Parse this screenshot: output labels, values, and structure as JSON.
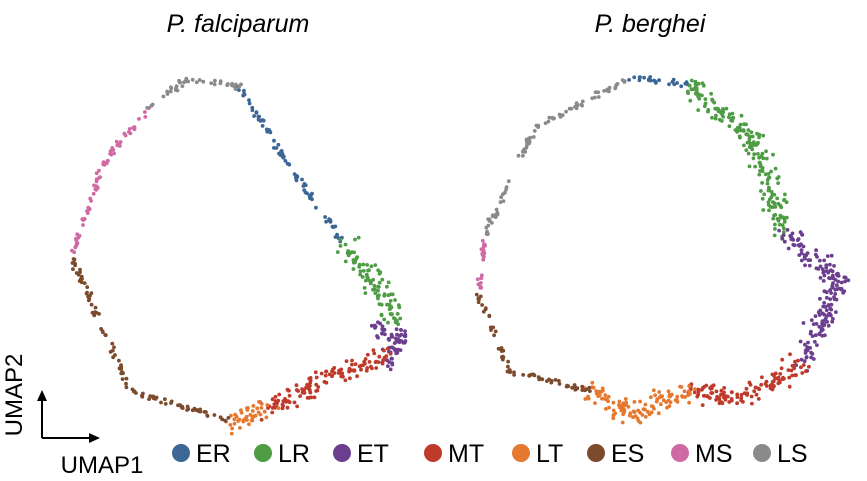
{
  "chart_data": [
    {
      "type": "scatter",
      "title": "P. falciparum",
      "xlabel": "UMAP1",
      "ylabel": "UMAP2",
      "series": [
        {
          "name": "ER",
          "color": "#3B6696",
          "trajectory": [
            [
              0.44,
              0.95
            ],
            [
              0.55,
              0.74
            ],
            [
              0.72,
              0.45
            ]
          ]
        },
        {
          "name": "LR",
          "color": "#4E9C44",
          "trajectory": [
            [
              0.72,
              0.45
            ],
            [
              0.82,
              0.3
            ],
            [
              0.86,
              0.22
            ]
          ]
        },
        {
          "name": "ET",
          "color": "#6B3E8F",
          "trajectory": [
            [
              0.8,
              0.2
            ],
            [
              0.87,
              0.16
            ],
            [
              0.82,
              0.08
            ]
          ]
        },
        {
          "name": "MT",
          "color": "#C03A2B",
          "trajectory": [
            [
              0.82,
              0.1
            ],
            [
              0.7,
              0.05
            ],
            [
              0.52,
              -0.05
            ]
          ]
        },
        {
          "name": "LT",
          "color": "#E6782F",
          "trajectory": [
            [
              0.52,
              -0.05
            ],
            [
              0.42,
              -0.1
            ]
          ]
        },
        {
          "name": "ES",
          "color": "#7C4A2C",
          "trajectory": [
            [
              0.42,
              -0.1
            ],
            [
              0.15,
              0.0
            ],
            [
              0.0,
              0.42
            ]
          ]
        },
        {
          "name": "MS",
          "color": "#D06AA4",
          "trajectory": [
            [
              0.0,
              0.42
            ],
            [
              0.08,
              0.7
            ],
            [
              0.2,
              0.88
            ]
          ]
        },
        {
          "name": "LS",
          "color": "#8A8A8A",
          "trajectory": [
            [
              0.2,
              0.88
            ],
            [
              0.3,
              0.97
            ],
            [
              0.44,
              0.95
            ]
          ]
        }
      ],
      "grid": false,
      "axes_visible": false
    },
    {
      "type": "scatter",
      "title": "P. berghei",
      "xlabel": "UMAP1",
      "ylabel": "UMAP2",
      "series": [
        {
          "name": "ER",
          "color": "#3B6696",
          "trajectory": [
            [
              0.4,
              0.97
            ],
            [
              0.55,
              0.95
            ]
          ]
        },
        {
          "name": "LR",
          "color": "#4E9C44",
          "trajectory": [
            [
              0.55,
              0.95
            ],
            [
              0.72,
              0.78
            ],
            [
              0.8,
              0.5
            ]
          ]
        },
        {
          "name": "ET",
          "color": "#6B3E8F",
          "trajectory": [
            [
              0.8,
              0.5
            ],
            [
              0.95,
              0.35
            ],
            [
              0.85,
              0.1
            ]
          ]
        },
        {
          "name": "MT",
          "color": "#C03A2B",
          "trajectory": [
            [
              0.85,
              0.1
            ],
            [
              0.7,
              0.0
            ],
            [
              0.55,
              0.02
            ]
          ]
        },
        {
          "name": "LT",
          "color": "#E6782F",
          "trajectory": [
            [
              0.55,
              0.02
            ],
            [
              0.4,
              -0.05
            ],
            [
              0.3,
              0.02
            ]
          ]
        },
        {
          "name": "ES",
          "color": "#7C4A2C",
          "trajectory": [
            [
              0.3,
              0.02
            ],
            [
              0.08,
              0.08
            ],
            [
              0.0,
              0.32
            ]
          ]
        },
        {
          "name": "MS",
          "color": "#D06AA4",
          "trajectory": [
            [
              0.0,
              0.32
            ],
            [
              0.02,
              0.5
            ]
          ]
        },
        {
          "name": "LS",
          "color": "#8A8A8A",
          "trajectory": [
            [
              0.02,
              0.5
            ],
            [
              0.15,
              0.82
            ],
            [
              0.4,
              0.97
            ]
          ]
        }
      ],
      "grid": false,
      "axes_visible": false
    }
  ],
  "legend": {
    "placement": "bottom",
    "items": [
      {
        "label": "ER",
        "color": "#3B6696"
      },
      {
        "label": "LR",
        "color": "#4E9C44"
      },
      {
        "label": "ET",
        "color": "#6B3E8F"
      },
      {
        "label": "MT",
        "color": "#C03A2B"
      },
      {
        "label": "LT",
        "color": "#E6782F"
      },
      {
        "label": "ES",
        "color": "#7C4A2C"
      },
      {
        "label": "MS",
        "color": "#D06AA4"
      },
      {
        "label": "LS",
        "color": "#8A8A8A"
      }
    ]
  }
}
